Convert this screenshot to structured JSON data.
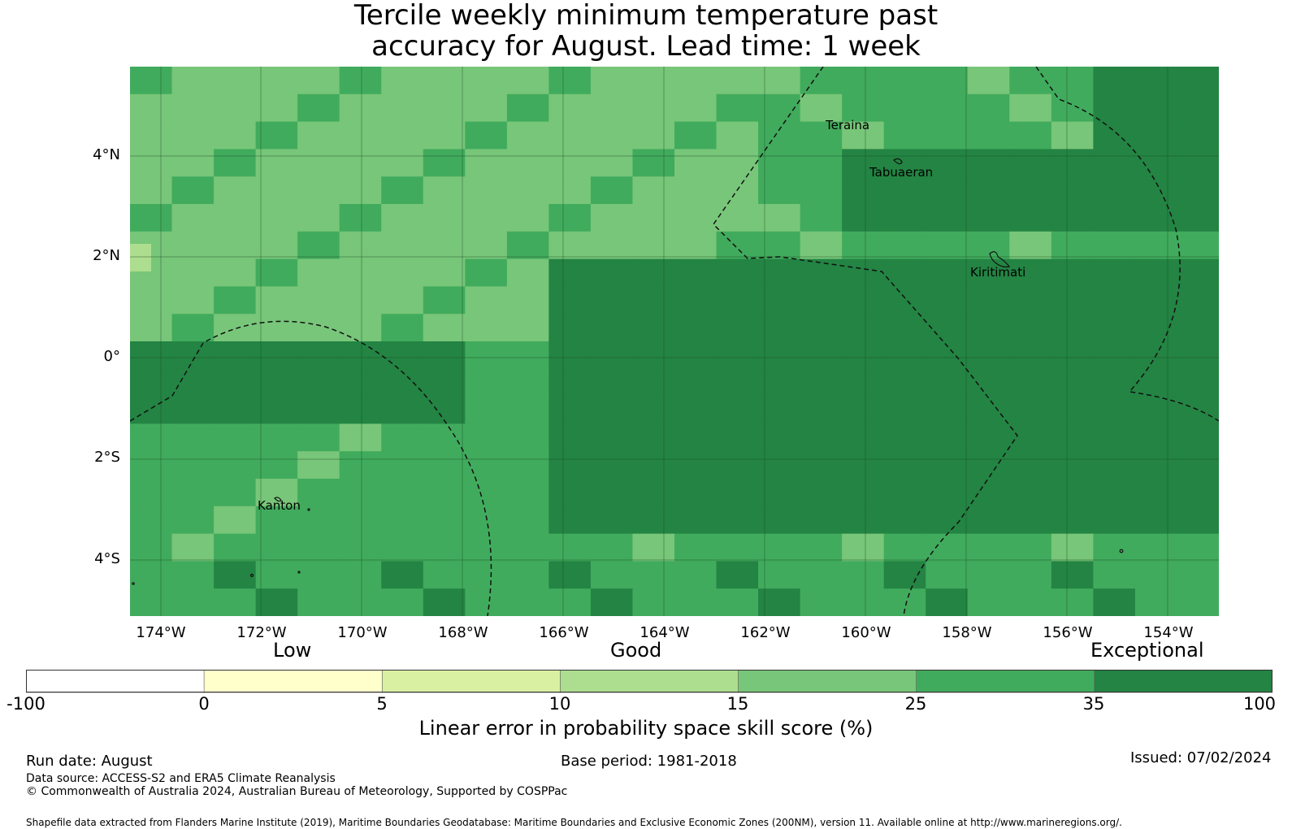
{
  "title": {
    "line1": "Tercile weekly minimum temperature past",
    "line2": "accuracy for August. Lead time: 1 week"
  },
  "map": {
    "lat_labels": [
      "4°N",
      "2°N",
      "0°",
      "2°S",
      "4°S"
    ],
    "lon_labels": [
      "174°W",
      "172°W",
      "170°W",
      "168°W",
      "166°W",
      "164°W",
      "162°W",
      "160°W",
      "158°W",
      "156°W",
      "154°W"
    ],
    "places": [
      "Teraina",
      "Tabuaeran",
      "Kiritimati",
      "Kanton"
    ],
    "palette": [
      "#ffffff",
      "#ffffcc",
      "#d9f0a3",
      "#addd8e",
      "#78c679",
      "#41ab5d",
      "#238443"
    ]
  },
  "legend": {
    "bands": [
      "Low",
      "Good",
      "Exceptional"
    ],
    "ticks": [
      "-100",
      "0",
      "5",
      "10",
      "15",
      "25",
      "35",
      "100"
    ],
    "colors": [
      "#ffffff",
      "#ffffcc",
      "#d9f0a3",
      "#addd8e",
      "#78c679",
      "#41ab5d",
      "#238443"
    ],
    "title": "Linear error in probability space skill score (%)"
  },
  "footer": {
    "run_date": "Run date: August",
    "base_period": "Base period: 1981-2018",
    "issued": "Issued: 07/02/2024",
    "data_source": "Data source: ACCESS-S2 and ERA5 Climate Reanalysis",
    "copyright": "© Commonwealth of Australia 2024, Australian Bureau of Meteorology, Supported by COSPPac",
    "shapefile": "Shapefile data extracted from Flanders Marine Institute (2019), Maritime Boundaries Geodatabase: Maritime Boundaries and Exclusive Economic Zones (200NM), version 11. Available online at http://www.marineregions.org/."
  }
}
